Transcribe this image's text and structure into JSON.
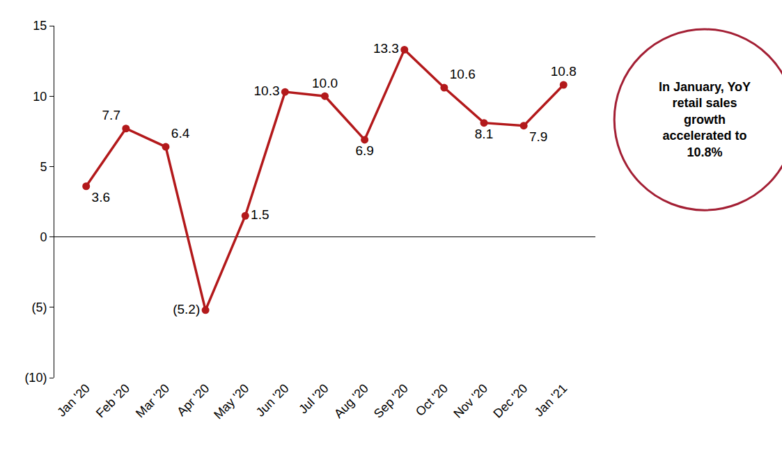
{
  "chart_data": {
    "type": "line",
    "categories": [
      "Jan '20",
      "Feb '20",
      "Mar '20",
      "Apr '20",
      "May '20",
      "Jun '20",
      "Jul '20",
      "Aug '20",
      "Sep '20",
      "Oct '20",
      "Nov '20",
      "Dec '20",
      "Jan '21"
    ],
    "values": [
      3.6,
      7.7,
      6.4,
      -5.2,
      1.5,
      10.3,
      10.0,
      6.9,
      13.3,
      10.6,
      8.1,
      7.9,
      10.8
    ],
    "value_labels": [
      "3.6",
      "7.7",
      "6.4",
      "(5.2)",
      "1.5",
      "10.3",
      "10.0",
      "6.9",
      "13.3",
      "10.6",
      "8.1",
      "7.9",
      "10.8"
    ],
    "data_labels": true,
    "color": "#b3191b",
    "marker": "circle",
    "line_style": "solid",
    "ylim": [
      -10,
      15
    ],
    "yticks": [
      {
        "value": -10,
        "label": "(10)"
      },
      {
        "value": -5,
        "label": "(5)"
      },
      0,
      5,
      10,
      15
    ],
    "grid": false,
    "annotations": [
      {
        "text": "In January, YoY\nretail sales\ngrowth\naccelerated to\n10.8%"
      }
    ]
  }
}
